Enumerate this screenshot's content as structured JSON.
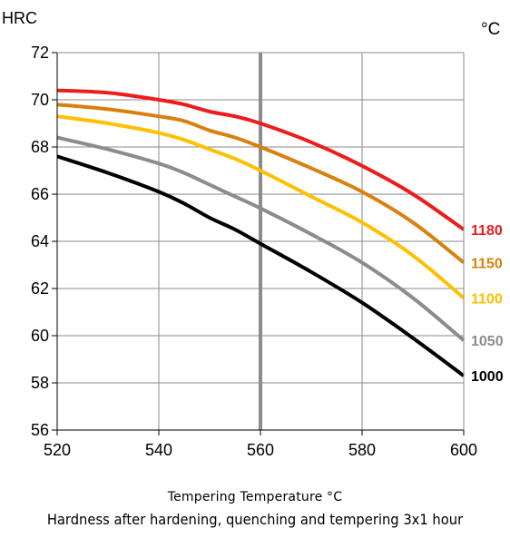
{
  "chart_data": {
    "type": "line",
    "ylabel": "HRC",
    "series_unit": "°C",
    "xlabel": "Tempering Temperature °C",
    "caption": "Hardness after hardening, quenching and tempering  3x1 hour",
    "xlim": [
      520,
      600
    ],
    "ylim": [
      56,
      72
    ],
    "x_ticks": [
      520,
      540,
      560,
      580,
      600
    ],
    "y_ticks": [
      56,
      58,
      60,
      62,
      64,
      66,
      68,
      70,
      72
    ],
    "grid": true,
    "reference_line_x": 560,
    "series": [
      {
        "name": "1180",
        "color": "#ee1c1c",
        "x": [
          520,
          530,
          540,
          545,
          550,
          555,
          560,
          570,
          580,
          590,
          600
        ],
        "y": [
          70.4,
          70.3,
          70.0,
          69.8,
          69.5,
          69.3,
          69.0,
          68.2,
          67.2,
          66.0,
          64.5
        ]
      },
      {
        "name": "1150",
        "color": "#d9800e",
        "x": [
          520,
          530,
          540,
          545,
          550,
          555,
          560,
          570,
          580,
          590,
          600
        ],
        "y": [
          69.8,
          69.6,
          69.3,
          69.1,
          68.7,
          68.4,
          68.0,
          67.1,
          66.1,
          64.8,
          63.1
        ]
      },
      {
        "name": "1100",
        "color": "#ffc000",
        "x": [
          520,
          530,
          540,
          545,
          550,
          555,
          560,
          570,
          580,
          590,
          600
        ],
        "y": [
          69.3,
          69.0,
          68.6,
          68.3,
          67.9,
          67.5,
          67.0,
          65.9,
          64.8,
          63.4,
          61.6
        ]
      },
      {
        "name": "1050",
        "color": "#8c8c8c",
        "x": [
          520,
          530,
          540,
          545,
          550,
          555,
          560,
          570,
          580,
          590,
          600
        ],
        "y": [
          68.4,
          67.9,
          67.3,
          66.9,
          66.4,
          65.9,
          65.4,
          64.3,
          63.1,
          61.6,
          59.8
        ]
      },
      {
        "name": "1000",
        "color": "#000000",
        "x": [
          520,
          530,
          540,
          545,
          550,
          555,
          560,
          570,
          580,
          590,
          600
        ],
        "y": [
          67.6,
          66.9,
          66.1,
          65.6,
          65.0,
          64.5,
          63.9,
          62.7,
          61.4,
          59.9,
          58.3
        ]
      }
    ]
  }
}
